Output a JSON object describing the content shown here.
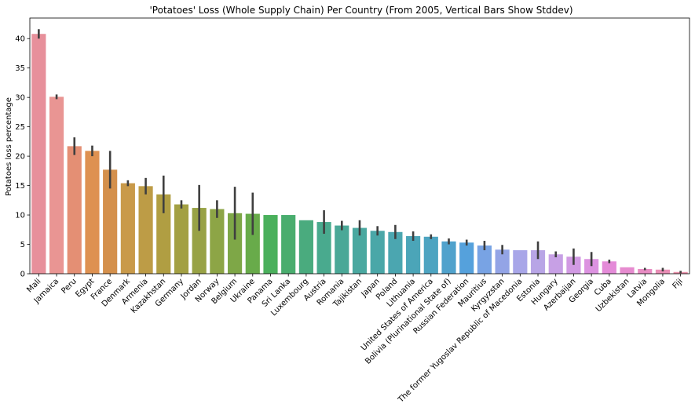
{
  "chart_data": {
    "type": "bar",
    "title": "'Potatoes' Loss (Whole Supply Chain) Per Country (From 2005, Vertical Bars Show Stddev)",
    "xlabel": "",
    "ylabel": "Potatoes loss percentage",
    "ylim": [
      0,
      43.5
    ],
    "yticks": [
      0,
      5,
      10,
      15,
      20,
      25,
      30,
      35,
      40
    ],
    "grid": false,
    "legend": "none",
    "categories": [
      "Mali",
      "Jamaica",
      "Peru",
      "Egypt",
      "France",
      "Denmark",
      "Armenia",
      "Kazakhstan",
      "Germany",
      "Jordan",
      "Norway",
      "Belgium",
      "Ukraine",
      "Panama",
      "Sri Lanka",
      "Luxembourg",
      "Austria",
      "Romania",
      "Tajikistan",
      "Japan",
      "Poland",
      "Lithuania",
      "United States of America",
      "Bolivia (Plurinational State of)",
      "Russian Federation",
      "Mauritius",
      "Kyrgyzstan",
      "The former Yugoslav Republic of Macedonia",
      "Estonia",
      "Hungary",
      "Azerbaijan",
      "Georgia",
      "Cuba",
      "Uzbekistan",
      "Latvia",
      "Mongolia",
      "Fiji"
    ],
    "values": [
      40.8,
      30.1,
      21.7,
      20.9,
      17.7,
      15.4,
      14.9,
      13.5,
      11.8,
      11.2,
      11.0,
      10.3,
      10.2,
      10.0,
      10.0,
      9.1,
      8.8,
      8.2,
      7.8,
      7.3,
      7.1,
      6.4,
      6.3,
      5.5,
      5.3,
      4.8,
      4.1,
      4.0,
      4.0,
      3.3,
      2.9,
      2.5,
      2.1,
      1.1,
      0.8,
      0.7,
      0.3
    ],
    "errors": [
      0.8,
      0.4,
      1.5,
      0.9,
      3.2,
      0.5,
      1.4,
      3.2,
      0.7,
      3.9,
      1.5,
      4.5,
      3.6,
      0,
      0,
      0,
      2.0,
      0.8,
      1.3,
      0.8,
      1.2,
      0.8,
      0.4,
      0.5,
      0.5,
      0.8,
      0.8,
      0,
      1.5,
      0.5,
      1.4,
      1.2,
      0.3,
      0,
      0.2,
      0.3,
      0.2
    ],
    "colors": [
      "#e7909b",
      "#e99593",
      "#e48f74",
      "#de9151",
      "#d4904c",
      "#c99a4a",
      "#bd9c46",
      "#b09e42",
      "#a3a043",
      "#98a245",
      "#8da546",
      "#7ea747",
      "#68ab4a",
      "#4ab05c",
      "#49ad6e",
      "#4aab7e",
      "#49aa8e",
      "#4aa897",
      "#4aa8a0",
      "#4aa7a8",
      "#4ba6b0",
      "#4ba5b8",
      "#4da4c1",
      "#50a2cc",
      "#55a1dc",
      "#78a3e4",
      "#93a4e6",
      "#a8a6e8",
      "#b8a5e6",
      "#c7a0e5",
      "#d19ae3",
      "#dc92e0",
      "#e48bd8",
      "#e68bcf",
      "#e88cc3",
      "#e98eb6",
      "#ea90aa"
    ]
  }
}
